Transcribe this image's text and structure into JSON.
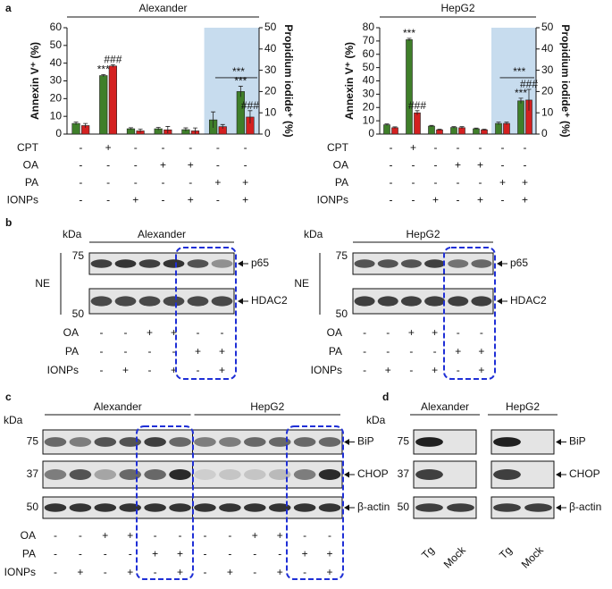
{
  "panel_labels": [
    "a",
    "b",
    "c",
    "d"
  ],
  "chart_data": [
    {
      "type": "bar",
      "title": "Alexander",
      "y_label": "Annexin V⁺ (%)",
      "y2_label": "Propidium iodide⁺ (%)",
      "categories": [
        null,
        null,
        null,
        null,
        null,
        null,
        null
      ],
      "ylim": [
        0,
        60
      ],
      "yticks": [
        0,
        10,
        20,
        30,
        40,
        50,
        60
      ],
      "y2lim": [
        0,
        50
      ],
      "y2ticks": [
        0,
        10,
        20,
        30,
        40,
        50
      ],
      "series": [
        {
          "color": "#3f7f2a",
          "values": [
            6,
            33,
            3,
            3,
            2.5,
            8,
            24
          ],
          "errors": [
            0.8,
            0.6,
            0.6,
            0.8,
            1,
            4.5,
            3
          ],
          "significance": [
            null,
            "***",
            null,
            null,
            null,
            null,
            "***"
          ]
        },
        {
          "color": "#d42020",
          "axis": "y2",
          "values": [
            4,
            32,
            1.5,
            2,
            1.5,
            3.5,
            8
          ],
          "errors": [
            1,
            0.6,
            0.8,
            1.6,
            1.4,
            1,
            3
          ],
          "significance": [
            null,
            "###",
            null,
            null,
            null,
            null,
            "###"
          ]
        }
      ],
      "bracket_label": "***",
      "conditions": [
        {
          "label": "CPT",
          "values": [
            "-",
            "+",
            "-",
            "-",
            "-",
            "-",
            "-"
          ]
        },
        {
          "label": "OA",
          "values": [
            "-",
            "-",
            "-",
            "+",
            "+",
            "-",
            "-"
          ]
        },
        {
          "label": "PA",
          "values": [
            "-",
            "-",
            "-",
            "-",
            "-",
            "+",
            "+"
          ]
        },
        {
          "label": "IONPs",
          "values": [
            "-",
            "-",
            "+",
            "-",
            "+",
            "-",
            "+"
          ]
        }
      ]
    },
    {
      "type": "bar",
      "title": "HepG2",
      "y_label": "Annexin V⁺ (%)",
      "y2_label": "Propidium iodide⁺ (%)",
      "categories": [
        null,
        null,
        null,
        null,
        null,
        null,
        null
      ],
      "ylim": [
        0,
        80
      ],
      "yticks": [
        0,
        10,
        20,
        30,
        40,
        50,
        60,
        70,
        80
      ],
      "y2lim": [
        0,
        50
      ],
      "y2ticks": [
        0,
        10,
        20,
        30,
        40,
        50
      ],
      "series": [
        {
          "color": "#3f7f2a",
          "values": [
            7,
            71,
            6,
            5,
            4,
            8,
            25
          ],
          "errors": [
            0.6,
            1,
            0.5,
            0.6,
            0.5,
            1,
            2
          ],
          "significance": [
            null,
            "***",
            null,
            null,
            null,
            null,
            "***"
          ]
        },
        {
          "color": "#d42020",
          "axis": "y2",
          "values": [
            3,
            10,
            2,
            3,
            2,
            5,
            16
          ],
          "errors": [
            0.4,
            1,
            0.3,
            0.5,
            0.3,
            0.6,
            5
          ],
          "significance": [
            null,
            "###",
            null,
            null,
            null,
            null,
            "###"
          ]
        }
      ],
      "bracket_label": "***",
      "conditions": [
        {
          "label": "CPT",
          "values": [
            "-",
            "+",
            "-",
            "-",
            "-",
            "-",
            "-"
          ]
        },
        {
          "label": "OA",
          "values": [
            "-",
            "-",
            "-",
            "+",
            "+",
            "-",
            "-"
          ]
        },
        {
          "label": "PA",
          "values": [
            "-",
            "-",
            "-",
            "-",
            "-",
            "+",
            "+"
          ]
        },
        {
          "label": "IONPs",
          "values": [
            "-",
            "-",
            "+",
            "-",
            "+",
            "-",
            "+"
          ]
        }
      ]
    }
  ],
  "panel_b": [
    {
      "title": "Alexander",
      "kda": "kDa",
      "markers": [
        "75",
        "50"
      ],
      "fraction": "NE",
      "proteins": [
        "p65",
        "HDAC2"
      ],
      "conditions": [
        {
          "label": "OA",
          "values": [
            "-",
            "-",
            "+",
            "+",
            "-",
            "-"
          ]
        },
        {
          "label": "PA",
          "values": [
            "-",
            "-",
            "-",
            "-",
            "+",
            "+"
          ]
        },
        {
          "label": "IONPs",
          "values": [
            "-",
            "+",
            "-",
            "+",
            "-",
            "+"
          ]
        }
      ]
    },
    {
      "title": "HepG2",
      "kda": "kDa",
      "markers": [
        "75",
        "50"
      ],
      "fraction": "NE",
      "proteins": [
        "p65",
        "HDAC2"
      ],
      "conditions": [
        {
          "label": "OA",
          "values": [
            "-",
            "-",
            "+",
            "+",
            "-",
            "-"
          ]
        },
        {
          "label": "PA",
          "values": [
            "-",
            "-",
            "-",
            "-",
            "+",
            "+"
          ]
        },
        {
          "label": "IONPs",
          "values": [
            "-",
            "+",
            "-",
            "+",
            "-",
            "+"
          ]
        }
      ]
    }
  ],
  "panel_c": {
    "kda": "kDa",
    "groups": [
      "Alexander",
      "HepG2"
    ],
    "markers": [
      "75",
      "37",
      "50"
    ],
    "proteins": [
      "BiP",
      "CHOP",
      "β-actin"
    ],
    "conditions": [
      {
        "label": "OA",
        "values": [
          "-",
          "-",
          "+",
          "+",
          "-",
          "-",
          "-",
          "-",
          "+",
          "+",
          "-",
          "-"
        ]
      },
      {
        "label": "PA",
        "values": [
          "-",
          "-",
          "-",
          "-",
          "+",
          "+",
          "-",
          "-",
          "-",
          "-",
          "+",
          "+"
        ]
      },
      {
        "label": "IONPs",
        "values": [
          "-",
          "+",
          "-",
          "+",
          "-",
          "+",
          "-",
          "+",
          "-",
          "+",
          "-",
          "+"
        ]
      }
    ]
  },
  "panel_d": {
    "kda": "kDa",
    "groups": [
      "Alexander",
      "HepG2"
    ],
    "markers": [
      "75",
      "37",
      "50"
    ],
    "proteins": [
      "BiP",
      "CHOP",
      "β-actin"
    ],
    "lanes": [
      "Tg",
      "Mock",
      "Tg",
      "Mock"
    ]
  }
}
